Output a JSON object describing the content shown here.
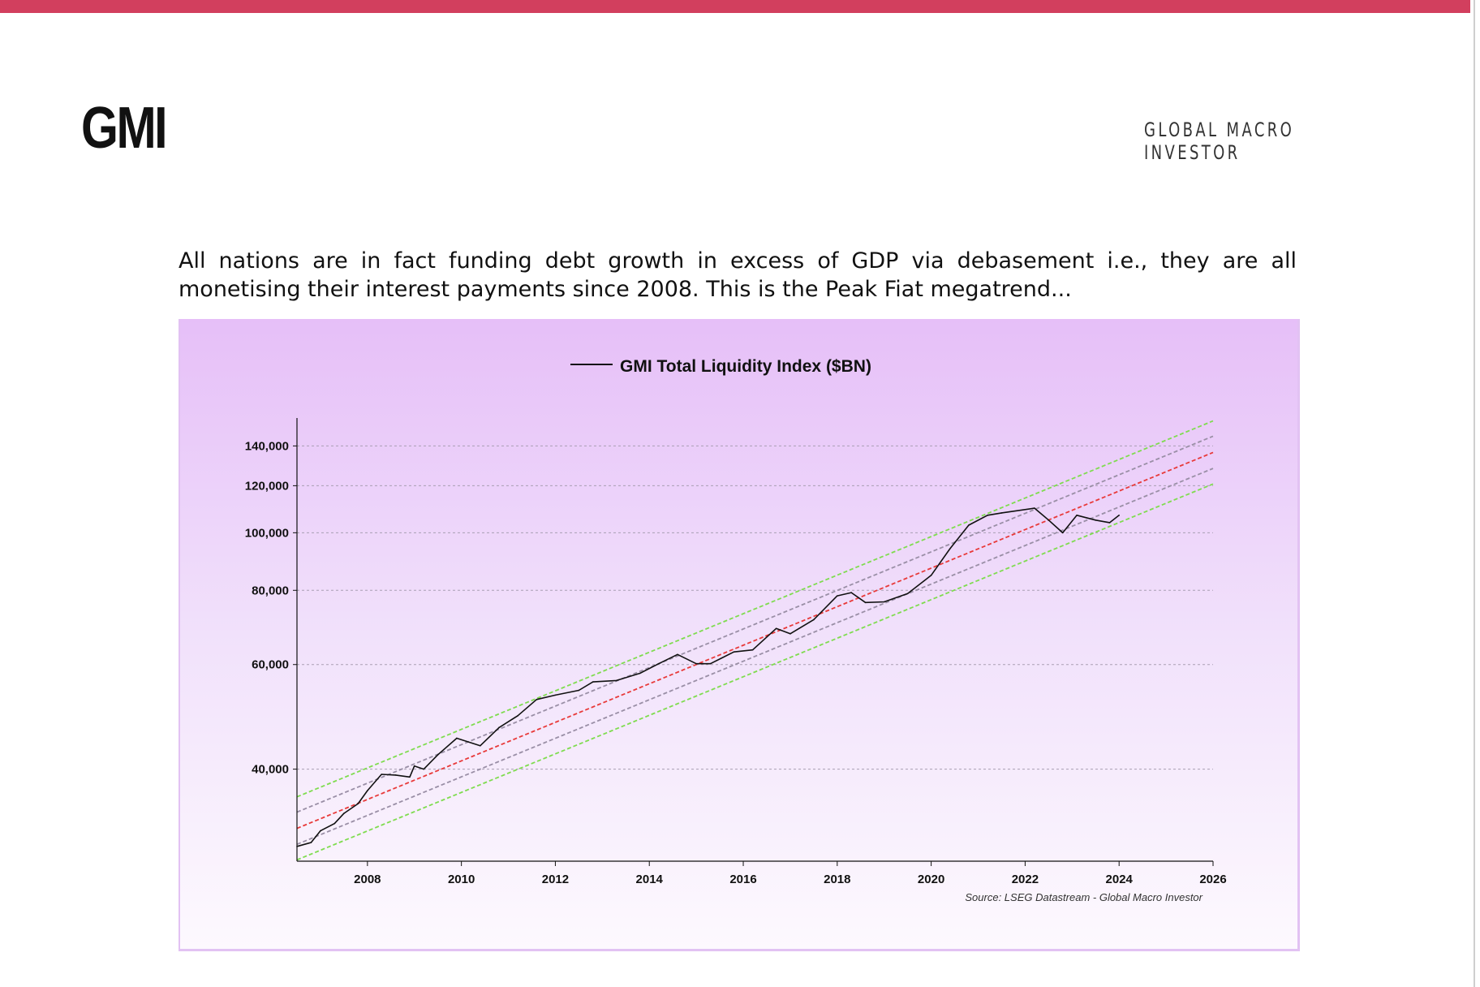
{
  "header": {
    "logo": "GMI",
    "brand": "GLOBAL MACRO INVESTOR",
    "accent_color": "#d23f5e"
  },
  "body": {
    "text": "All nations are in fact funding debt growth in excess of GDP via debasement i.e., they are all monetising their interest payments since 2008.  This is the Peak Fiat megatrend..."
  },
  "chart_data": {
    "type": "line",
    "title": "",
    "legend": {
      "label": "GMI Total Liquidity Index ($BN)",
      "placement": "top-center"
    },
    "source": "Source: LSEG Datastream - Global Macro Investor",
    "xlabel": "",
    "ylabel": "",
    "xlim": [
      2006.5,
      2026
    ],
    "ylim": [
      28000,
      156000
    ],
    "yscale": "log",
    "x_ticks": [
      "2008",
      "2010",
      "2012",
      "2014",
      "2016",
      "2018",
      "2020",
      "2022",
      "2024",
      "2026"
    ],
    "y_ticks": [
      {
        "value": 40000,
        "label": "40,000"
      },
      {
        "value": 60000,
        "label": "60,000"
      },
      {
        "value": 80000,
        "label": "80,000"
      },
      {
        "value": 100000,
        "label": "100,000"
      },
      {
        "value": 120000,
        "label": "120,000"
      },
      {
        "value": 140000,
        "label": "140,000"
      }
    ],
    "grid": true,
    "series": [
      {
        "name": "GMI Total Liquidity Index ($BN)",
        "color": "#111111",
        "x": [
          2006.5,
          2006.8,
          2007.0,
          2007.3,
          2007.5,
          2007.8,
          2008.0,
          2008.3,
          2008.6,
          2008.9,
          2009.0,
          2009.2,
          2009.5,
          2009.9,
          2010.4,
          2010.8,
          2011.2,
          2011.6,
          2012.0,
          2012.5,
          2012.8,
          2013.3,
          2013.8,
          2014.2,
          2014.6,
          2015.0,
          2015.3,
          2015.8,
          2016.2,
          2016.7,
          2017.0,
          2017.5,
          2018.0,
          2018.3,
          2018.6,
          2019.0,
          2019.5,
          2020.0,
          2020.4,
          2020.8,
          2021.2,
          2021.5,
          2022.2,
          2022.5,
          2022.8,
          2023.1,
          2023.5,
          2023.8,
          2024.0
        ],
        "values": [
          29650,
          30100,
          31500,
          32400,
          33700,
          35000,
          36800,
          39200,
          39100,
          38800,
          40500,
          40000,
          42300,
          45100,
          43800,
          47000,
          49200,
          52400,
          53300,
          54300,
          56100,
          56400,
          58000,
          60200,
          62400,
          60200,
          60200,
          63000,
          63500,
          69000,
          67600,
          71400,
          78300,
          79300,
          76300,
          76500,
          79000,
          84800,
          94000,
          103000,
          107000,
          108000,
          110000,
          105000,
          100000,
          107000,
          105000,
          104000,
          107000
        ]
      }
    ],
    "trend_bands": {
      "trend_start": {
        "x": 2006.5,
        "value": 31800
      },
      "trend_end": {
        "x": 2026,
        "value": 136500
      },
      "bands": [
        {
          "name": "upper-2",
          "factor": 1.13,
          "color": "#7fdc4f"
        },
        {
          "name": "upper-1",
          "factor": 1.065,
          "color": "#9a8fa6"
        },
        {
          "name": "trend",
          "factor": 1.0,
          "color": "#e83a3a"
        },
        {
          "name": "lower-1",
          "factor": 0.94,
          "color": "#9a8fa6"
        },
        {
          "name": "lower-2",
          "factor": 0.885,
          "color": "#7fdc4f"
        }
      ]
    }
  }
}
